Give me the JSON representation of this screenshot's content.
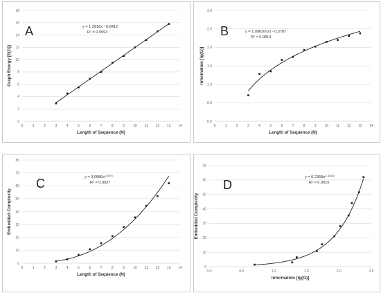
{
  "colors": {
    "grid": "#d9d9d9",
    "axis": "#bfbfbf",
    "line": "#222222",
    "point": "#1a1a1a"
  },
  "chart_data": [
    {
      "id": "a",
      "type": "scatter",
      "panel_label": "A",
      "xlabel": "Length of Sequence (N)",
      "ylabel": "Graph Energy [E(G)]",
      "xlim": [
        0,
        14
      ],
      "ylim": [
        0,
        18
      ],
      "xticks": [
        "0",
        "1",
        "2",
        "3",
        "4",
        "5",
        "6",
        "7",
        "8",
        "9",
        "10",
        "11",
        "12",
        "13",
        "14"
      ],
      "yticks": [
        "0",
        "2",
        "4",
        "6",
        "8",
        "10",
        "12",
        "14",
        "16",
        "18"
      ],
      "x": [
        3,
        4,
        5,
        6,
        7,
        8,
        9,
        10,
        11,
        12,
        13
      ],
      "y": [
        2.9,
        4.5,
        5.5,
        6.9,
        8.0,
        9.5,
        10.6,
        12.0,
        13.2,
        14.6,
        15.8
      ],
      "fit": {
        "kind": "linear",
        "a": 1.2818,
        "b": -0.8412,
        "x_from": 3,
        "x_to": 13
      },
      "equation": "y = 1.2818x - 0.8412",
      "r2": "R² = 0.9993"
    },
    {
      "id": "b",
      "type": "scatter",
      "panel_label": "B",
      "xlabel": "Length of Sequence (N)",
      "ylabel": "Information [lg(G)]",
      "xlim": [
        0,
        14
      ],
      "ylim": [
        0,
        3.0
      ],
      "xticks": [
        "0",
        "1",
        "2",
        "3",
        "4",
        "5",
        "6",
        "7",
        "8",
        "9",
        "10",
        "11",
        "12",
        "13",
        "14"
      ],
      "yticks": [
        "0.0",
        "0.5",
        "1.0",
        "1.5",
        "2.0",
        "2.5",
        "3.0"
      ],
      "x": [
        3,
        4,
        5,
        6,
        7,
        8,
        9,
        10,
        11,
        12,
        13
      ],
      "y": [
        0.7,
        1.28,
        1.35,
        1.66,
        1.74,
        1.93,
        2.02,
        2.15,
        2.2,
        2.31,
        2.38
      ],
      "fit": {
        "kind": "log",
        "a": 1.0962,
        "b": -0.3787,
        "x_from": 3,
        "x_to": 13
      },
      "equation": "y = 1.0962ln(x) - 0.3787",
      "r2": "R² = 0.9814"
    },
    {
      "id": "c",
      "type": "scatter",
      "panel_label": "C",
      "xlabel": "Length of Sequence (N)",
      "ylabel": "Embedded Complexity",
      "xlim": [
        0,
        14
      ],
      "ylim": [
        0,
        80
      ],
      "xticks": [
        "0",
        "1",
        "2",
        "3",
        "4",
        "5",
        "6",
        "7",
        "8",
        "9",
        "10",
        "11",
        "12",
        "13",
        "14"
      ],
      "yticks": [
        "0",
        "10",
        "20",
        "30",
        "40",
        "50",
        "60",
        "70",
        "80"
      ],
      "x": [
        3,
        4,
        5,
        6,
        7,
        8,
        9,
        10,
        11,
        12,
        13
      ],
      "y": [
        1.4,
        3.0,
        6.5,
        10.8,
        15.5,
        21.0,
        28.0,
        35.5,
        44.5,
        52.0,
        62.0
      ],
      "fit": {
        "kind": "power",
        "a": 0.0886,
        "b": 2.5875,
        "x_from": 3,
        "x_to": 13
      },
      "equation_main": "y = 0.0886x",
      "equation_exp": "2.5875",
      "r2": "R² = 0.9937"
    },
    {
      "id": "d",
      "type": "scatter",
      "panel_label": "D",
      "xlabel": "Information [lg(G)]",
      "ylabel": "Embedded Complexity",
      "xlim": [
        0,
        2.5
      ],
      "ylim": [
        0,
        70
      ],
      "xticks": [
        "0.0",
        "0.5",
        "1.0",
        "1.5",
        "2.0",
        "2.5"
      ],
      "yticks": [
        "0",
        "10",
        "20",
        "30",
        "40",
        "50",
        "60",
        "70"
      ],
      "x": [
        0.7,
        1.28,
        1.35,
        1.66,
        1.74,
        1.93,
        2.02,
        2.15,
        2.2,
        2.31,
        2.38
      ],
      "y": [
        1.4,
        3.0,
        6.5,
        10.8,
        15.5,
        21.0,
        28.0,
        35.5,
        44.0,
        51.5,
        62.0
      ],
      "fit": {
        "kind": "exp",
        "a": 0.2358,
        "b": 2.3342,
        "x_from": 0.7,
        "x_to": 2.38
      },
      "equation_main": "y = 0.2358e",
      "equation_exp": "2.3342x",
      "r2": "R² = 0.9916"
    }
  ]
}
